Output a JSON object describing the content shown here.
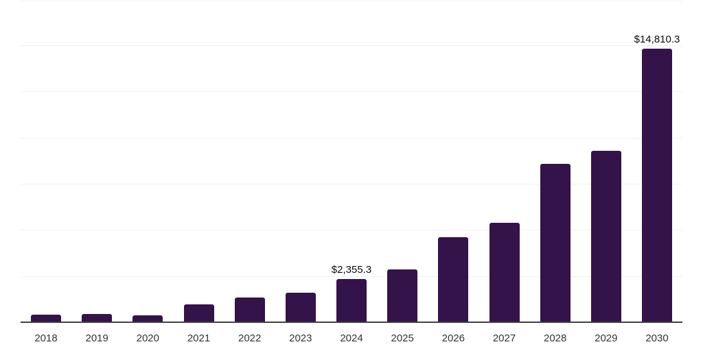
{
  "chart_data": {
    "type": "bar",
    "title": "",
    "xlabel": "",
    "ylabel": "",
    "categories": [
      "2018",
      "2019",
      "2020",
      "2021",
      "2022",
      "2023",
      "2024",
      "2025",
      "2026",
      "2027",
      "2028",
      "2029",
      "2030"
    ],
    "values": [
      420,
      430,
      385,
      950,
      1325,
      1605,
      2355.3,
      2845,
      4610,
      5390,
      8570,
      9265,
      14810.3
    ],
    "data_labels": [
      {
        "category": "2024",
        "text": "$2,355.3"
      },
      {
        "category": "2030",
        "text": "$14,810.3"
      }
    ],
    "ylim": [
      0,
      17500
    ],
    "gridline_values": [
      2500,
      5000,
      7500,
      10000,
      12500,
      15000,
      17500
    ],
    "grid": true,
    "legend": false,
    "y_axis_labels_visible": false,
    "colors": {
      "bar": "#34124A",
      "axis": "#404040",
      "gridline": "#f2f2f5",
      "tick_label": "#333333",
      "data_label": "#0a0a0a",
      "background": "#ffffff"
    }
  },
  "layout_text": {}
}
